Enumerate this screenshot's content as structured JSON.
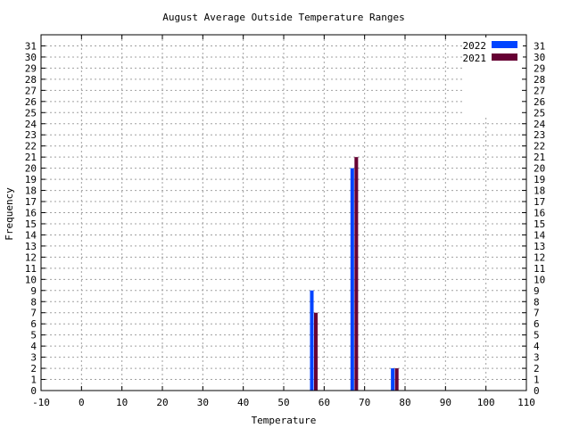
{
  "chart_data": {
    "type": "bar",
    "title": "August Average Outside Temperature Ranges",
    "xlabel": "Temperature",
    "ylabel": "Frequency",
    "xlim": [
      -10,
      110
    ],
    "ylim": [
      0,
      32
    ],
    "x_ticks": [
      -10,
      0,
      10,
      20,
      30,
      40,
      50,
      60,
      70,
      80,
      90,
      100,
      110
    ],
    "y_ticks": [
      0,
      1,
      2,
      3,
      4,
      5,
      6,
      7,
      8,
      9,
      10,
      11,
      12,
      13,
      14,
      15,
      16,
      17,
      18,
      19,
      20,
      21,
      22,
      23,
      24,
      25,
      26,
      27,
      28,
      29,
      30,
      31
    ],
    "grid": true,
    "legend_position": "top-right",
    "series": [
      {
        "name": "2022",
        "color": "#0044ff",
        "x": [
          57,
          67,
          77
        ],
        "values": [
          9,
          20,
          2
        ]
      },
      {
        "name": "2021",
        "color": "#660033",
        "x": [
          58,
          68,
          78
        ],
        "values": [
          7,
          21,
          2
        ]
      }
    ]
  }
}
